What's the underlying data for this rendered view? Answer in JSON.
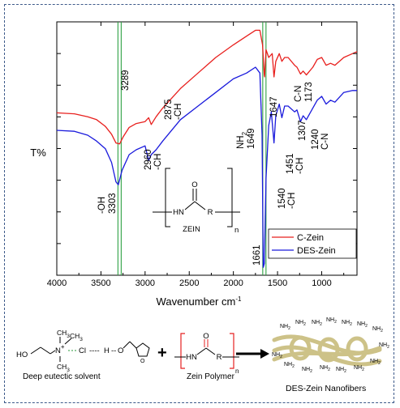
{
  "chart_data": {
    "type": "line",
    "xlabel": "Wavenumber cm",
    "xlabel_sup": "-1",
    "ylabel": "T%",
    "xlim": [
      4000,
      600
    ],
    "xticks": [
      "4000",
      "3500",
      "3000",
      "2500",
      "2000",
      "1500",
      "1000"
    ],
    "xtick_values": [
      4000,
      3500,
      3000,
      2500,
      2000,
      1500,
      1000
    ],
    "grid": false,
    "legend_position": "bottom-right",
    "reference_lines": [
      3289,
      1649
    ],
    "series": [
      {
        "name": "C-Zein",
        "color": "#e8201e",
        "points": [
          [
            4000,
            0.415
          ],
          [
            3800,
            0.41
          ],
          [
            3650,
            0.395
          ],
          [
            3550,
            0.38
          ],
          [
            3450,
            0.345
          ],
          [
            3380,
            0.305
          ],
          [
            3330,
            0.26
          ],
          [
            3289,
            0.255
          ],
          [
            3250,
            0.29
          ],
          [
            3180,
            0.34
          ],
          [
            3100,
            0.36
          ],
          [
            3000,
            0.37
          ],
          [
            2960,
            0.39
          ],
          [
            2930,
            0.355
          ],
          [
            2875,
            0.395
          ],
          [
            2800,
            0.44
          ],
          [
            2600,
            0.54
          ],
          [
            2400,
            0.62
          ],
          [
            2200,
            0.7
          ],
          [
            2000,
            0.765
          ],
          [
            1850,
            0.81
          ],
          [
            1750,
            0.84
          ],
          [
            1700,
            0.84
          ],
          [
            1670,
            0.765
          ],
          [
            1650,
            0.61
          ],
          [
            1647,
            0.6
          ],
          [
            1630,
            0.74
          ],
          [
            1600,
            0.7
          ],
          [
            1560,
            0.72
          ],
          [
            1540,
            0.6
          ],
          [
            1520,
            0.68
          ],
          [
            1480,
            0.72
          ],
          [
            1451,
            0.68
          ],
          [
            1420,
            0.7
          ],
          [
            1380,
            0.7
          ],
          [
            1307,
            0.66
          ],
          [
            1280,
            0.65
          ],
          [
            1240,
            0.615
          ],
          [
            1210,
            0.63
          ],
          [
            1173,
            0.61
          ],
          [
            1100,
            0.65
          ],
          [
            1050,
            0.69
          ],
          [
            1000,
            0.7
          ],
          [
            950,
            0.66
          ],
          [
            900,
            0.67
          ],
          [
            850,
            0.66
          ],
          [
            750,
            0.7
          ],
          [
            650,
            0.72
          ],
          [
            600,
            0.73
          ]
        ]
      },
      {
        "name": "DES-Zein",
        "color": "#1a1adc",
        "points": [
          [
            4000,
            0.325
          ],
          [
            3800,
            0.32
          ],
          [
            3650,
            0.3
          ],
          [
            3550,
            0.27
          ],
          [
            3450,
            0.23
          ],
          [
            3380,
            0.16
          ],
          [
            3330,
            0.06
          ],
          [
            3303,
            0.045
          ],
          [
            3260,
            0.12
          ],
          [
            3180,
            0.2
          ],
          [
            3100,
            0.225
          ],
          [
            3000,
            0.245
          ],
          [
            2960,
            0.17
          ],
          [
            2930,
            0.2
          ],
          [
            2875,
            0.225
          ],
          [
            2800,
            0.27
          ],
          [
            2600,
            0.38
          ],
          [
            2400,
            0.45
          ],
          [
            2200,
            0.52
          ],
          [
            2000,
            0.59
          ],
          [
            1850,
            0.62
          ],
          [
            1750,
            0.65
          ],
          [
            1700,
            0.62
          ],
          [
            1675,
            0.3
          ],
          [
            1661,
            -0.38
          ],
          [
            1649,
            -0.36
          ],
          [
            1630,
            0.08
          ],
          [
            1600,
            0.35
          ],
          [
            1570,
            0.42
          ],
          [
            1540,
            0.26
          ],
          [
            1520,
            0.4
          ],
          [
            1480,
            0.46
          ],
          [
            1451,
            0.39
          ],
          [
            1420,
            0.45
          ],
          [
            1380,
            0.45
          ],
          [
            1307,
            0.42
          ],
          [
            1280,
            0.43
          ],
          [
            1240,
            0.37
          ],
          [
            1210,
            0.4
          ],
          [
            1173,
            0.38
          ],
          [
            1100,
            0.44
          ],
          [
            1050,
            0.48
          ],
          [
            1000,
            0.5
          ],
          [
            950,
            0.46
          ],
          [
            900,
            0.48
          ],
          [
            850,
            0.47
          ],
          [
            750,
            0.52
          ],
          [
            650,
            0.53
          ],
          [
            600,
            0.53
          ]
        ]
      }
    ],
    "annotations": [
      {
        "id": "a3289",
        "lines": [
          "3289"
        ]
      },
      {
        "id": "a2875",
        "lines": [
          "2875",
          "-CH"
        ]
      },
      {
        "id": "a1647",
        "lines": [
          "1647"
        ]
      },
      {
        "id": "a1173",
        "lines": [
          "C-N",
          "1173"
        ]
      },
      {
        "id": "a2960",
        "lines": [
          "2960",
          "-CH"
        ]
      },
      {
        "id": "a3303",
        "lines": [
          "-OH",
          "3303"
        ]
      },
      {
        "id": "a1649",
        "lines": [
          "NH",
          "1649"
        ]
      },
      {
        "id": "a1540",
        "lines": [
          "1540",
          "-CH"
        ]
      },
      {
        "id": "a1451",
        "lines": [
          "1451",
          "-CH"
        ]
      },
      {
        "id": "a1307",
        "lines": [
          "1307"
        ]
      },
      {
        "id": "a1240",
        "lines": [
          "1240",
          "C-N"
        ]
      },
      {
        "id": "a1661",
        "lines": [
          "1661"
        ]
      }
    ],
    "nh_subscript": "2"
  },
  "zein_structure": {
    "atom_o": "O",
    "atom_hn": "HN",
    "atom_r": "R",
    "subscript_n": "n",
    "name": "ZEIN"
  },
  "scheme": {
    "des": {
      "ho": "HO",
      "ch3_top": "CH",
      "ch3_mid": "CH",
      "ch3_bottom": "CH",
      "sub3": "3",
      "n_plus": "N",
      "plus": "+",
      "cl": "Cl",
      "h": "H",
      "o": "O",
      "caption": "Deep eutectic solvent",
      "color_red": "#e52222",
      "color_blue": "#1f3aa5",
      "color_green": "#2a9a3a"
    },
    "plus": "+",
    "zein_polymer": {
      "o": "O",
      "hn": "HN",
      "r": "R",
      "n": "n",
      "caption": "Zein Polymer"
    },
    "nanofiber": {
      "group": "NH",
      "sub": "2",
      "caption": "DES-Zein Nanofibers",
      "fiber_color": "#cdc288"
    }
  }
}
